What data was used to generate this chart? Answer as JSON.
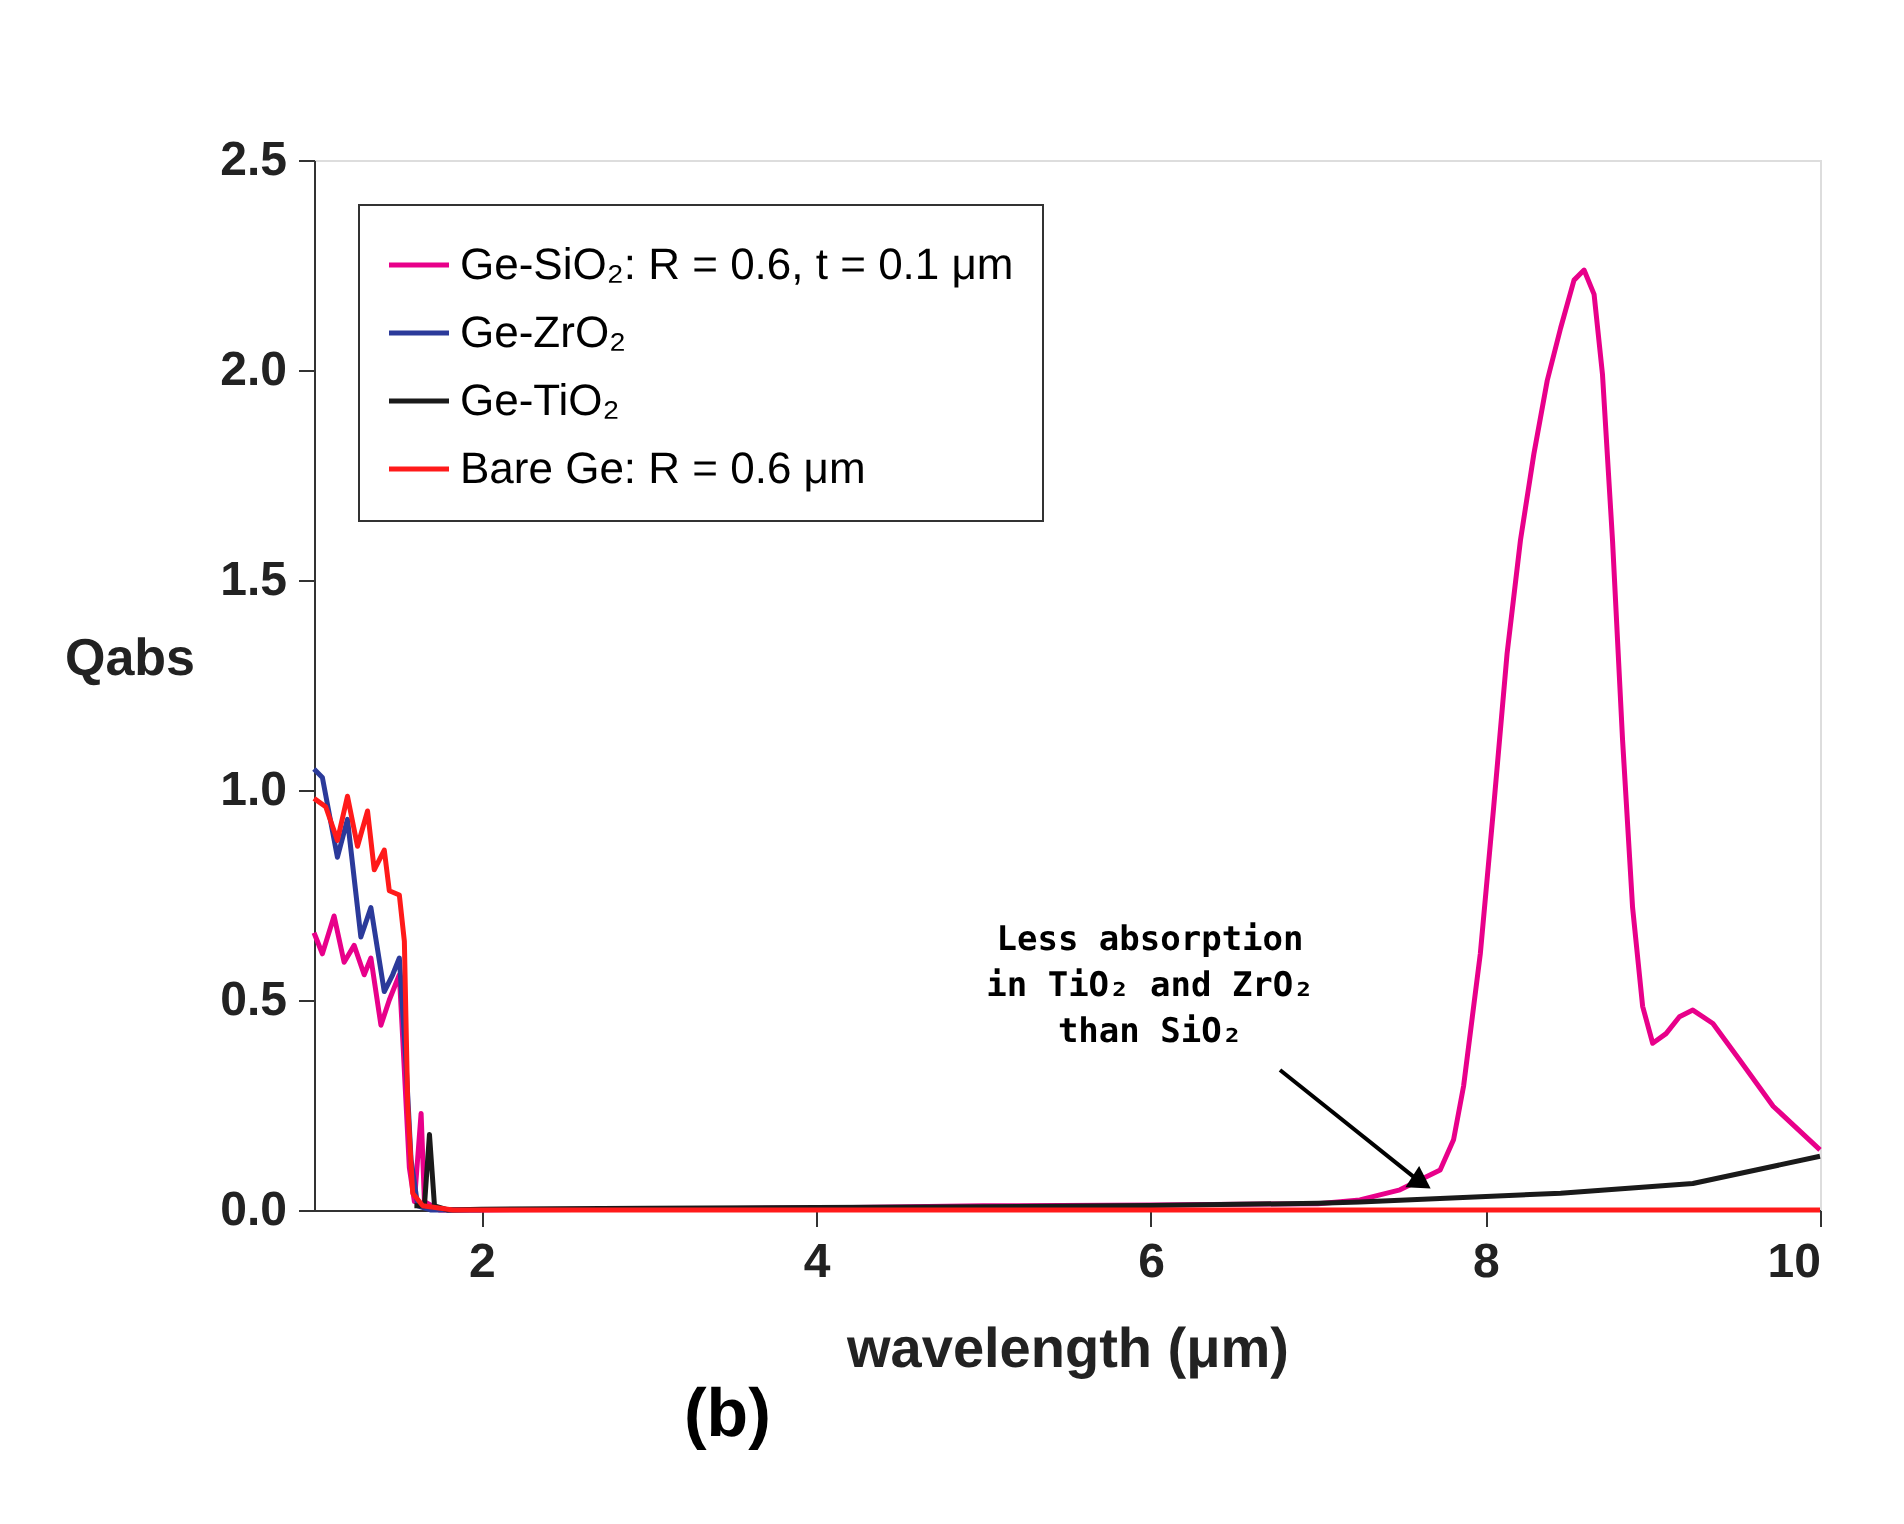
{
  "chart_data": {
    "type": "line",
    "title": "(b)",
    "xlabel": "wavelength (μm)",
    "ylabel": "Qabs",
    "xlim": [
      1,
      10
    ],
    "ylim": [
      0,
      2.5
    ],
    "xticks": [
      2,
      4,
      6,
      8,
      10
    ],
    "yticks": [
      {
        "value": 0,
        "label": "0.0"
      },
      {
        "value": 0.5,
        "label": "0.5"
      },
      {
        "value": 1,
        "label": "1.0"
      },
      {
        "value": 1.5,
        "label": "1.5"
      },
      {
        "value": 2,
        "label": "2.0"
      },
      {
        "value": 2.5,
        "label": "2.5"
      }
    ],
    "grid": false,
    "legend": "top left",
    "marker": "none",
    "line_style": "solid",
    "series": [
      {
        "name": "Ge-SiO₂: R = 0.6, t = 0.1 μm",
        "color": "#e8008a",
        "x": [
          1.0,
          1.05,
          1.12,
          1.18,
          1.24,
          1.3,
          1.34,
          1.4,
          1.45,
          1.51,
          1.53,
          1.57,
          1.6,
          1.64,
          1.66,
          1.75,
          2,
          3,
          4,
          5,
          6,
          7,
          7.25,
          7.49,
          7.73,
          7.81,
          7.87,
          7.97,
          8.05,
          8.13,
          8.21,
          8.29,
          8.37,
          8.45,
          8.53,
          8.59,
          8.65,
          8.7,
          8.76,
          8.82,
          8.88,
          8.94,
          9.0,
          9.08,
          9.16,
          9.24,
          9.36,
          9.52,
          9.72,
          10
        ],
        "values": [
          0.66,
          0.61,
          0.7,
          0.59,
          0.63,
          0.56,
          0.6,
          0.44,
          0.5,
          0.56,
          0.41,
          0.1,
          0.02,
          0.23,
          0.02,
          0,
          0,
          0.002,
          0.005,
          0.01,
          0.012,
          0.015,
          0.024,
          0.048,
          0.095,
          0.167,
          0.295,
          0.61,
          0.96,
          1.325,
          1.595,
          1.8,
          1.975,
          2.1,
          2.214,
          2.238,
          2.18,
          1.99,
          1.595,
          1.12,
          0.72,
          0.485,
          0.397,
          0.42,
          0.46,
          0.476,
          0.444,
          0.357,
          0.247,
          0.143
        ]
      },
      {
        "name": "Ge-ZrO₂",
        "color": "#2b3a9a",
        "x": [
          1.0,
          1.05,
          1.14,
          1.2,
          1.28,
          1.34,
          1.42,
          1.47,
          1.51,
          1.55,
          1.58,
          1.62,
          1.7,
          2
        ],
        "values": [
          1.05,
          1.03,
          0.84,
          0.93,
          0.65,
          0.72,
          0.52,
          0.56,
          0.6,
          0.35,
          0.12,
          0.01,
          0,
          0
        ]
      },
      {
        "name": "Ge-TiO₂",
        "color": "#1a1a1a",
        "x": [
          1.6,
          1.66,
          1.69,
          1.72,
          1.8,
          2,
          3,
          4,
          5,
          6,
          7,
          7.25,
          8.45,
          9.24,
          10
        ],
        "values": [
          0.01,
          0.01,
          0.18,
          0.01,
          0,
          0.002,
          0.004,
          0.006,
          0.008,
          0.011,
          0.016,
          0.019,
          0.04,
          0.063,
          0.128
        ]
      },
      {
        "name": "Bare Ge: R = 0.6 μm",
        "color": "#ff1a1a",
        "x": [
          1.0,
          1.07,
          1.14,
          1.2,
          1.26,
          1.32,
          1.36,
          1.42,
          1.45,
          1.51,
          1.54,
          1.56,
          1.59,
          1.65,
          1.83,
          3,
          5,
          7,
          9,
          10
        ],
        "values": [
          0.98,
          0.96,
          0.88,
          0.985,
          0.866,
          0.95,
          0.81,
          0.857,
          0.76,
          0.75,
          0.64,
          0.25,
          0.04,
          0.01,
          0,
          0,
          0,
          0,
          0,
          0
        ]
      }
    ],
    "annotations": [
      {
        "text": "Less absorption\nin TiO₂ and ZrO₂\nthan SiO₂",
        "x": 7.6,
        "y": 0.07
      }
    ]
  }
}
